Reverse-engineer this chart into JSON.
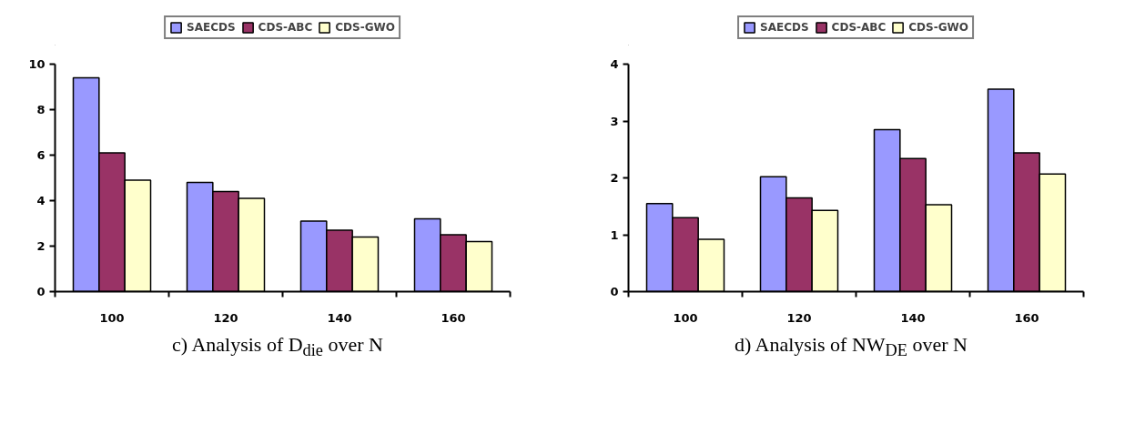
{
  "chart_data": [
    {
      "type": "bar",
      "title": "c) Analysis of D$_{die}$ over N",
      "categories": [
        "100",
        "120",
        "140",
        "160"
      ],
      "ylim": [
        0,
        10
      ],
      "yticks": [
        0,
        2,
        4,
        6,
        8,
        10
      ],
      "grid": false,
      "legend": "top",
      "series": [
        {
          "name": "SAECDS",
          "color": "#9999ff",
          "values": [
            9.4,
            4.8,
            3.1,
            3.2
          ]
        },
        {
          "name": "CDS-ABC",
          "color": "#993366",
          "values": [
            6.1,
            4.4,
            2.7,
            2.5
          ]
        },
        {
          "name": "CDS-GWO",
          "color": "#ffffcc",
          "values": [
            4.9,
            4.1,
            2.4,
            2.2
          ]
        }
      ]
    },
    {
      "type": "bar",
      "title": "d) Analysis of NW$_{DE}$ over N",
      "categories": [
        "100",
        "120",
        "140",
        "160"
      ],
      "ylim": [
        0,
        4
      ],
      "yticks": [
        0,
        1,
        2,
        3,
        4
      ],
      "grid": false,
      "legend": "top",
      "series": [
        {
          "name": "SAECDS",
          "color": "#9999ff",
          "values": [
            1.55,
            2.02,
            2.85,
            3.56
          ]
        },
        {
          "name": "CDS-ABC",
          "color": "#993366",
          "values": [
            1.3,
            1.65,
            2.34,
            2.44
          ]
        },
        {
          "name": "CDS-GWO",
          "color": "#ffffcc",
          "values": [
            0.92,
            1.43,
            1.53,
            2.07
          ]
        }
      ]
    }
  ]
}
